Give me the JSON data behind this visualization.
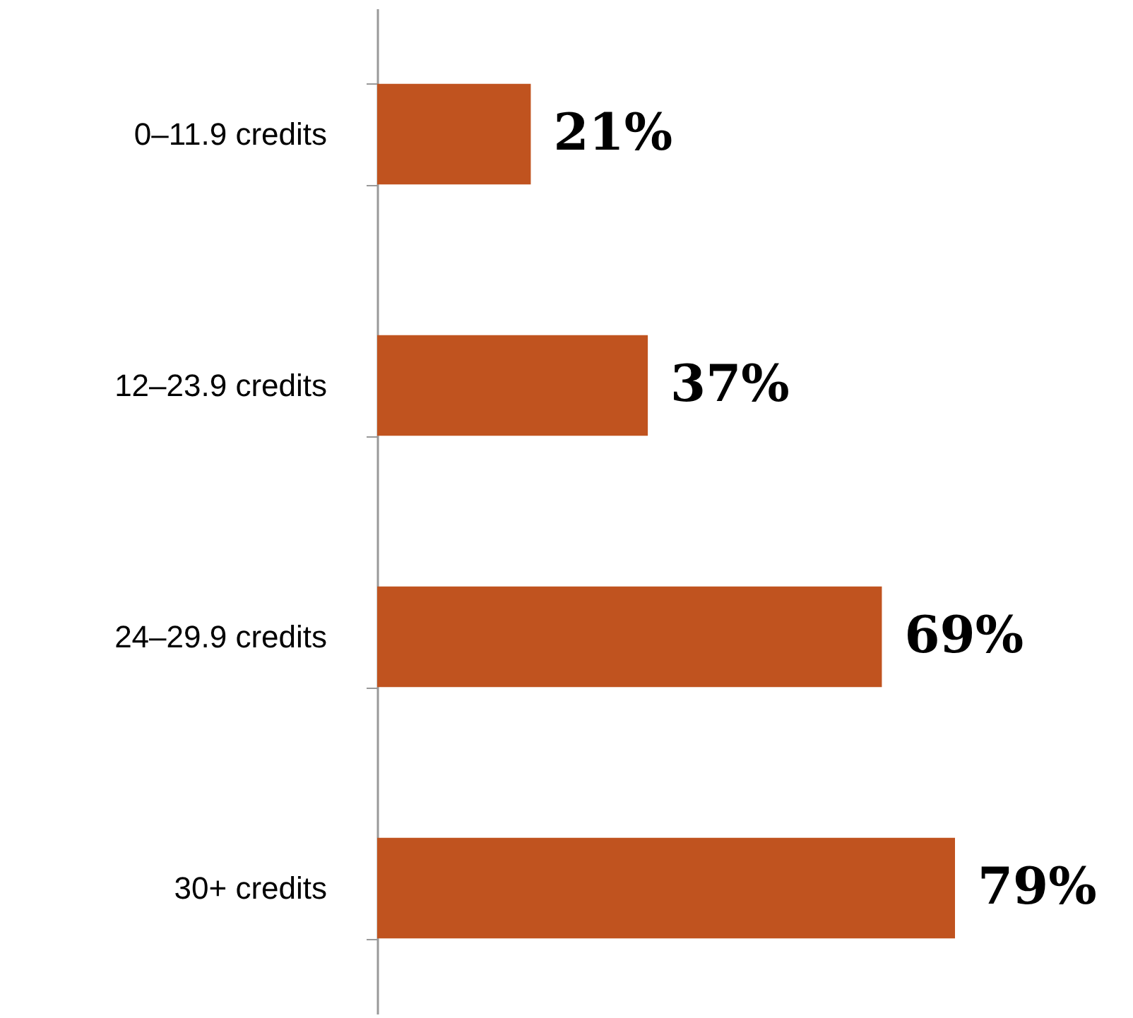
{
  "chart_data": {
    "type": "bar",
    "orientation": "horizontal",
    "categories": [
      "0–11.9 credits",
      "12–23.9 credits",
      "24–29.9 credits",
      "30+ credits"
    ],
    "values": [
      21,
      37,
      69,
      79
    ],
    "value_labels": [
      "21%",
      "37%",
      "69%",
      "79%"
    ],
    "color": "#c0531f",
    "tick_labels": "y"
  }
}
